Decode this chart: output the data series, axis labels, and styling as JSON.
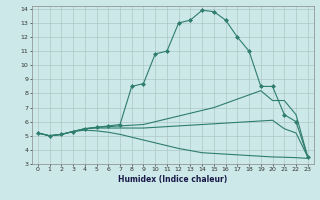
{
  "xlabel": "Humidex (Indice chaleur)",
  "ylabel": "",
  "xlim": [
    -0.5,
    23.5
  ],
  "ylim": [
    3,
    14.2
  ],
  "xticks": [
    0,
    1,
    2,
    3,
    4,
    5,
    6,
    7,
    8,
    9,
    10,
    11,
    12,
    13,
    14,
    15,
    16,
    17,
    18,
    19,
    20,
    21,
    22,
    23
  ],
  "yticks": [
    3,
    4,
    5,
    6,
    7,
    8,
    9,
    10,
    11,
    12,
    13,
    14
  ],
  "line_color": "#2e7d6e",
  "bg_color": "#cce8e8",
  "grid_color": "#b0d4d4",
  "lines": [
    {
      "x": [
        0,
        1,
        2,
        3,
        4,
        5,
        6,
        7,
        8,
        9,
        10,
        11,
        12,
        13,
        14,
        15,
        16,
        17,
        18,
        19,
        20,
        21,
        22,
        23
      ],
      "y": [
        5.2,
        5.0,
        5.1,
        5.3,
        5.5,
        5.6,
        5.7,
        5.8,
        8.5,
        8.7,
        10.8,
        11.0,
        13.0,
        13.2,
        13.9,
        13.8,
        13.2,
        12.0,
        11.0,
        8.5,
        8.5,
        6.5,
        6.0,
        3.5
      ],
      "marker": "D",
      "markersize": 2.0
    },
    {
      "x": [
        0,
        1,
        2,
        3,
        4,
        5,
        6,
        7,
        8,
        9,
        10,
        11,
        12,
        13,
        14,
        15,
        16,
        17,
        18,
        19,
        20,
        21,
        22,
        23
      ],
      "y": [
        5.2,
        5.0,
        5.1,
        5.3,
        5.5,
        5.6,
        5.65,
        5.7,
        5.75,
        5.8,
        6.0,
        6.2,
        6.4,
        6.6,
        6.8,
        7.0,
        7.3,
        7.6,
        7.9,
        8.2,
        7.5,
        7.5,
        6.5,
        3.5
      ],
      "marker": null,
      "markersize": 0
    },
    {
      "x": [
        0,
        1,
        2,
        3,
        4,
        5,
        6,
        7,
        8,
        9,
        10,
        11,
        12,
        13,
        14,
        15,
        16,
        17,
        18,
        19,
        20,
        21,
        22,
        23
      ],
      "y": [
        5.2,
        5.0,
        5.1,
        5.3,
        5.5,
        5.55,
        5.55,
        5.55,
        5.55,
        5.55,
        5.6,
        5.65,
        5.7,
        5.75,
        5.8,
        5.85,
        5.9,
        5.95,
        6.0,
        6.05,
        6.1,
        5.5,
        5.2,
        3.5
      ],
      "marker": null,
      "markersize": 0
    },
    {
      "x": [
        0,
        1,
        2,
        3,
        4,
        5,
        6,
        7,
        8,
        9,
        10,
        11,
        12,
        13,
        14,
        15,
        16,
        17,
        18,
        19,
        20,
        21,
        22,
        23
      ],
      "y": [
        5.2,
        5.0,
        5.1,
        5.3,
        5.4,
        5.35,
        5.25,
        5.1,
        4.9,
        4.7,
        4.5,
        4.3,
        4.1,
        3.95,
        3.8,
        3.75,
        3.7,
        3.65,
        3.6,
        3.55,
        3.5,
        3.48,
        3.45,
        3.4
      ],
      "marker": null,
      "markersize": 0
    }
  ]
}
